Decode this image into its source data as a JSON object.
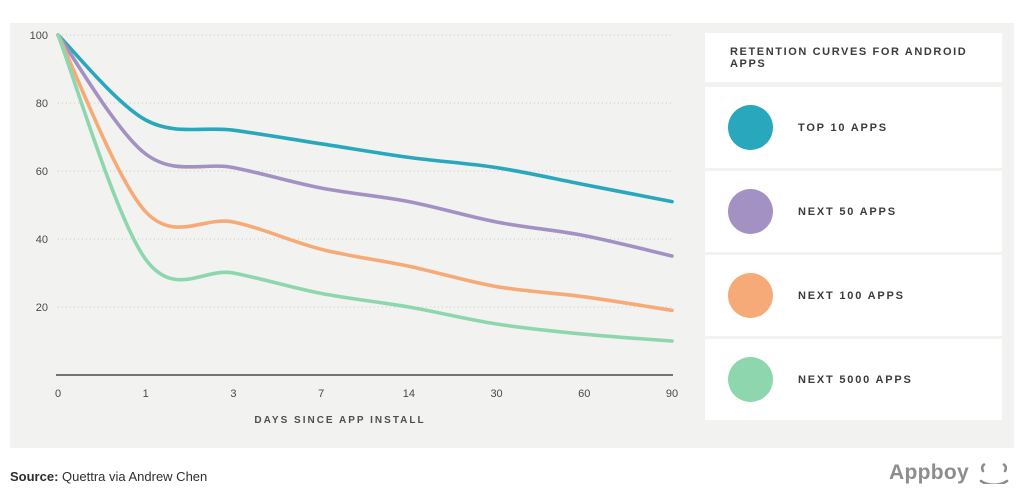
{
  "chart_data": {
    "type": "line",
    "title": "RETENTION CURVES FOR ANDROID APPS",
    "xlabel": "DAYS SINCE APP INSTALL",
    "x_tick_labels": [
      "0",
      "1",
      "3",
      "7",
      "14",
      "30",
      "60",
      "90"
    ],
    "y_ticks": [
      100,
      80,
      60,
      40,
      20
    ],
    "ylim": [
      0,
      100
    ],
    "grid": "horizontal-dotted",
    "legend_position": "right",
    "series": [
      {
        "name": "TOP 10 APPS",
        "color": "#29a7bc",
        "values": [
          100,
          75,
          72,
          68,
          64,
          61,
          56,
          51
        ]
      },
      {
        "name": "NEXT 50 APPS",
        "color": "#a491c3",
        "values": [
          100,
          65,
          61,
          55,
          51,
          45,
          41,
          35
        ]
      },
      {
        "name": "NEXT 100 APPS",
        "color": "#f6aa78",
        "values": [
          100,
          48,
          45,
          37,
          32,
          26,
          23,
          19
        ]
      },
      {
        "name": "NEXT 5000 APPS",
        "color": "#8ed7ae",
        "values": [
          100,
          34,
          30,
          24,
          20,
          15,
          12,
          10
        ]
      }
    ]
  },
  "footer": {
    "source_label": "Source:",
    "source_text": " Quettra via Andrew Chen",
    "brand": "Appboy"
  },
  "colors": {
    "band_background": "#f2f2f0",
    "grid": "#c9c9c4",
    "axis": "#4b4b4b",
    "text_dark": "#3b3b3b",
    "brand_gray": "#8d8d8d"
  }
}
